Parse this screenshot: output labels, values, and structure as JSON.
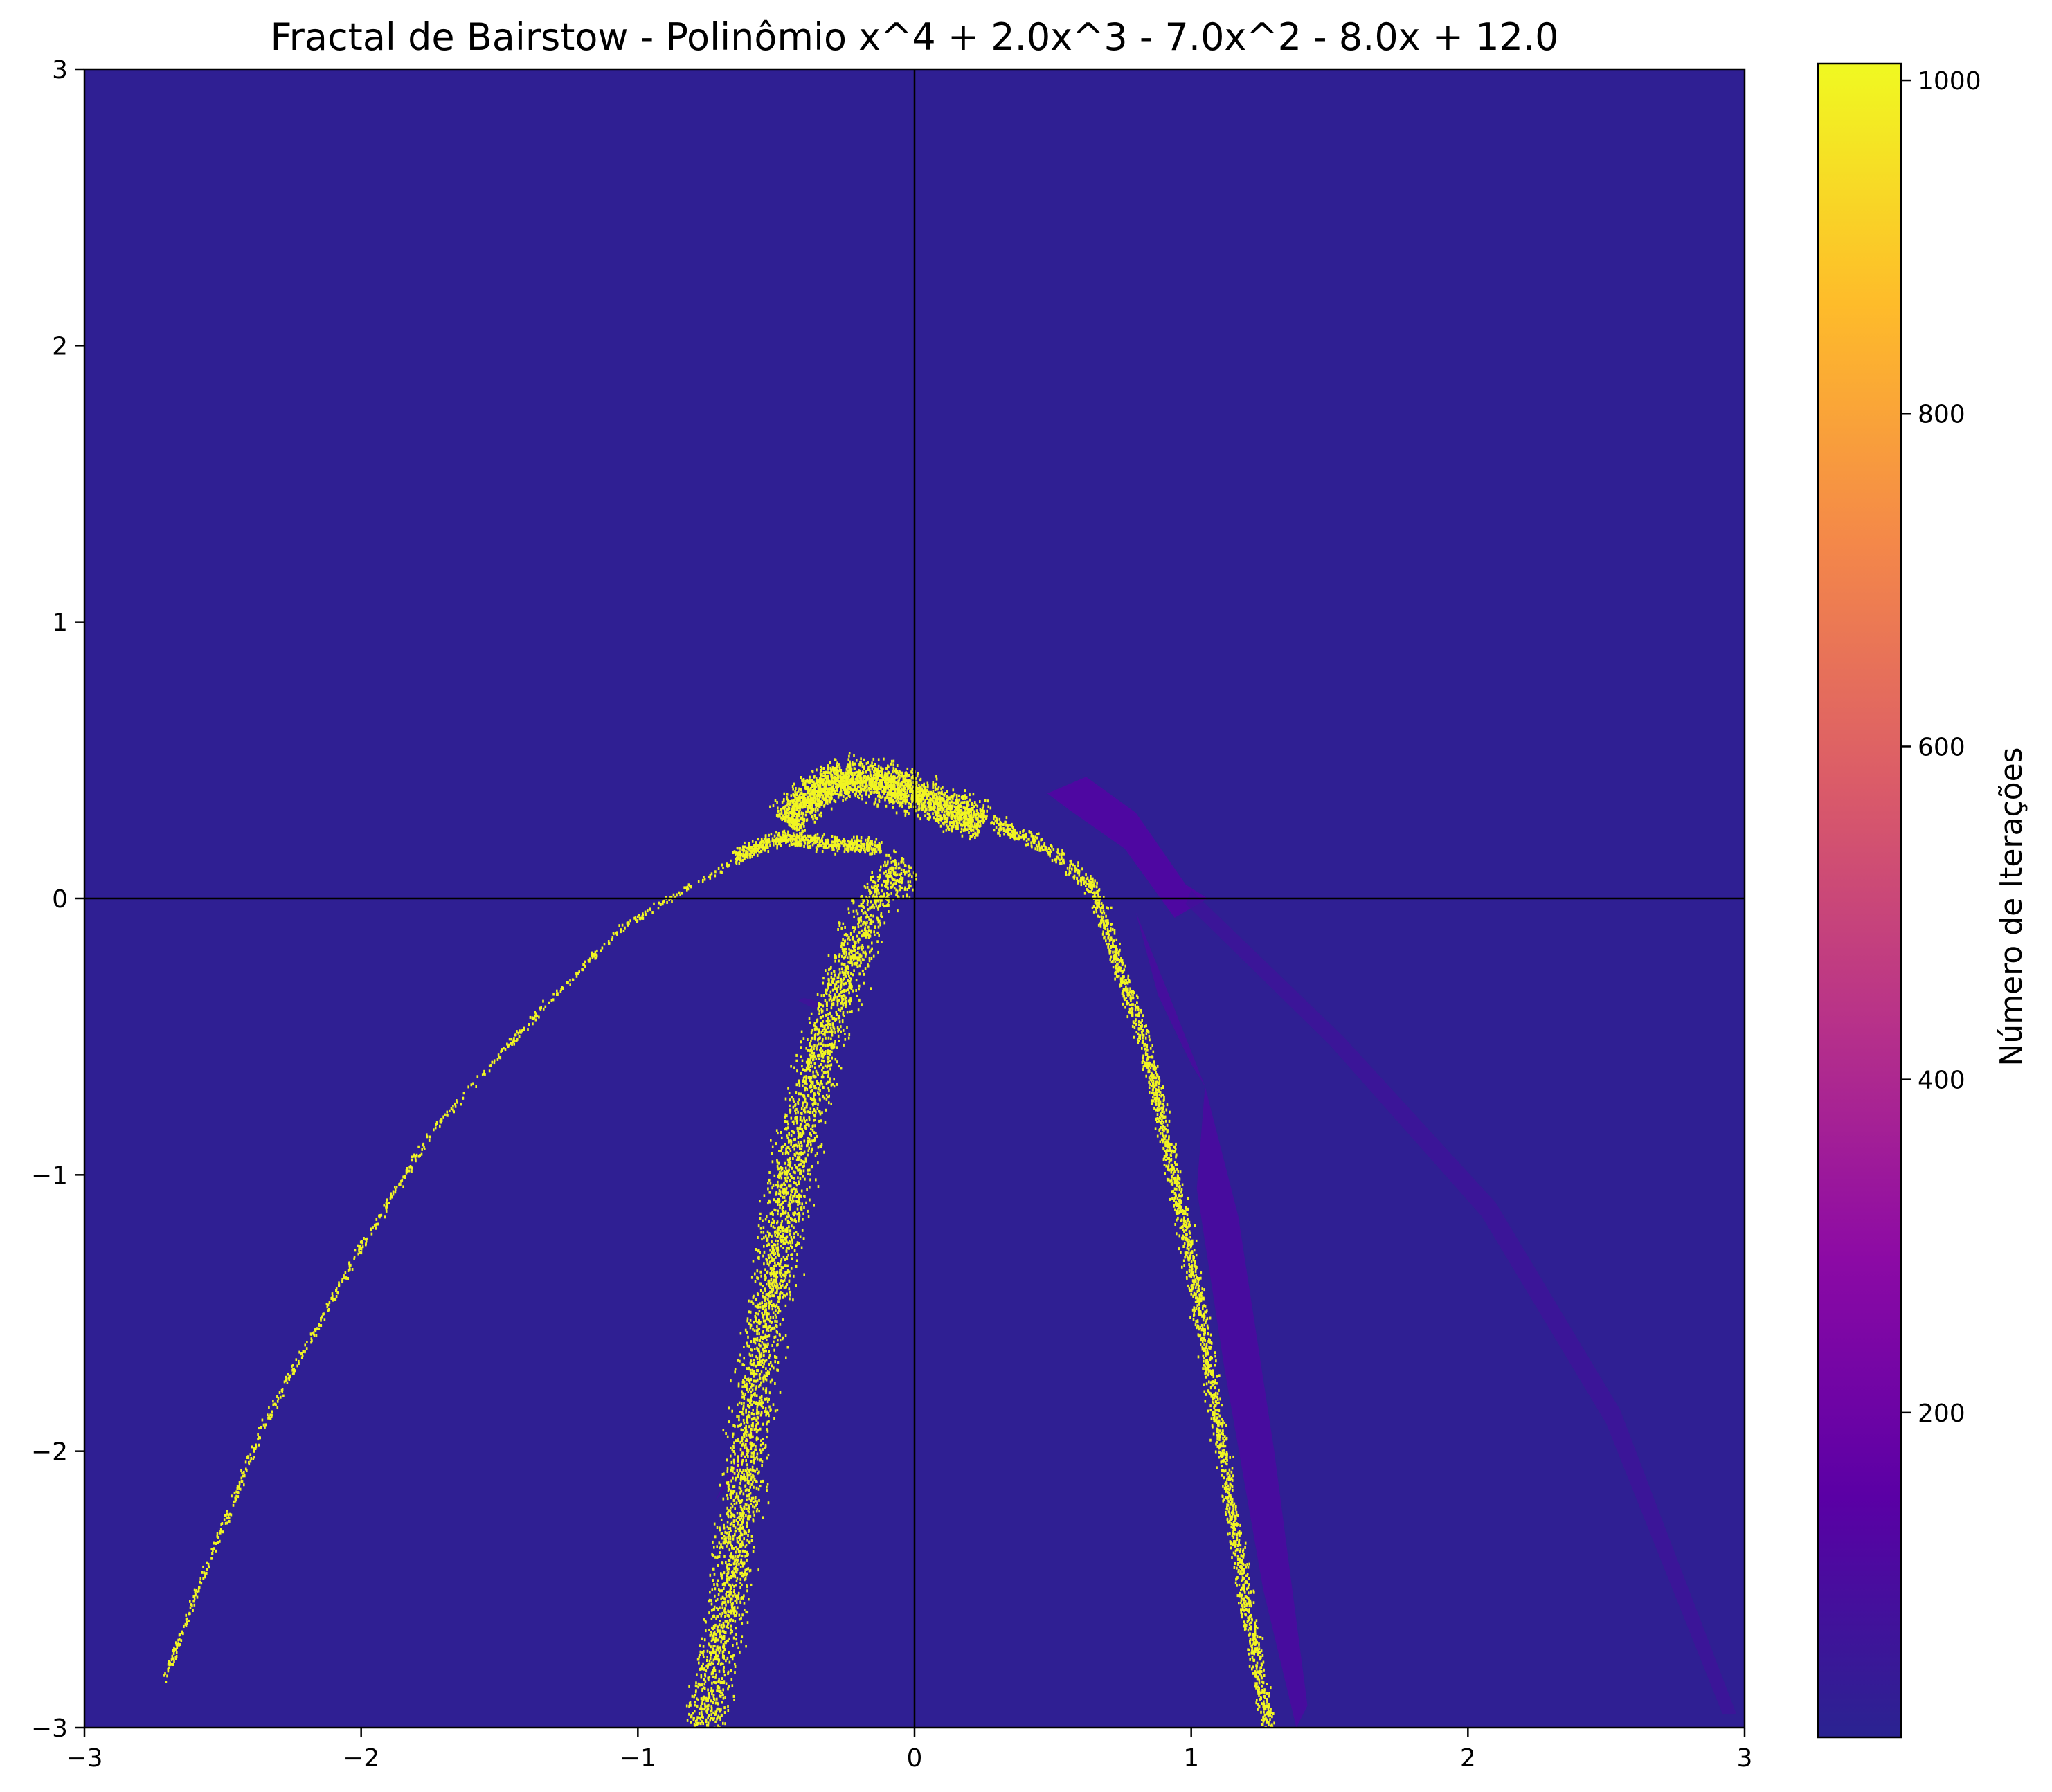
{
  "chart_data": {
    "type": "heatmap",
    "title": "Fractal de Bairstow - Polinômio x^4 + 2.0x^3 - 7.0x^2 - 8.0x + 12.0",
    "xlabel": "",
    "ylabel": "",
    "xlim": [
      -3,
      3
    ],
    "ylim": [
      -3,
      3
    ],
    "x_ticks": [
      -3,
      -2,
      -1,
      0,
      1,
      2,
      3
    ],
    "y_ticks": [
      -3,
      -2,
      -1,
      0,
      1,
      2,
      3
    ],
    "x_tick_labels": [
      "−3",
      "−2",
      "−1",
      "0",
      "1",
      "2",
      "3"
    ],
    "y_tick_labels": [
      "−3",
      "−2",
      "−1",
      "0",
      "1",
      "2",
      "3"
    ],
    "grid": false,
    "reference_lines": [
      {
        "orientation": "horizontal",
        "value": 0
      },
      {
        "orientation": "vertical",
        "value": 0
      }
    ],
    "colormap": "plasma",
    "colorbar": {
      "label": "Número de Iterações",
      "range": [
        5,
        1010
      ],
      "ticks": [
        200,
        400,
        600,
        800,
        1000
      ],
      "tick_labels": [
        "200",
        "400",
        "600",
        "800",
        "1000"
      ],
      "stops": [
        "#2a2391",
        "#5a00a5",
        "#8c0aa5",
        "#b83289",
        "#db5c68",
        "#f48849",
        "#febc2a",
        "#f0f921"
      ]
    },
    "background_value": 20,
    "regions": [
      {
        "name": "lens-right",
        "value": 150,
        "polygon": [
          [
            0.48,
            0.38
          ],
          [
            0.62,
            0.44
          ],
          [
            0.8,
            0.31
          ],
          [
            0.98,
            0.05
          ],
          [
            1.06,
            0.0
          ],
          [
            0.94,
            -0.07
          ],
          [
            0.76,
            0.18
          ],
          [
            0.56,
            0.32
          ]
        ]
      },
      {
        "name": "blade-lower",
        "value": 120,
        "polygon": [
          [
            1.05,
            -0.68
          ],
          [
            1.17,
            -1.15
          ],
          [
            1.3,
            -2.0
          ],
          [
            1.42,
            -2.92
          ],
          [
            1.38,
            -3.0
          ],
          [
            1.26,
            -2.5
          ],
          [
            1.12,
            -1.7
          ],
          [
            1.02,
            -1.05
          ]
        ]
      },
      {
        "name": "inner-petal",
        "value": 110,
        "polygon": [
          [
            0.8,
            -0.05
          ],
          [
            0.92,
            -0.35
          ],
          [
            1.05,
            -0.68
          ],
          [
            1.0,
            -0.6
          ],
          [
            0.88,
            -0.35
          ]
        ]
      },
      {
        "name": "thin-arc",
        "value": 70,
        "polygon": [
          [
            1.0,
            0.03
          ],
          [
            1.55,
            -0.5
          ],
          [
            2.1,
            -1.1
          ],
          [
            2.55,
            -1.85
          ],
          [
            2.97,
            -2.95
          ],
          [
            2.92,
            -2.95
          ],
          [
            2.5,
            -1.9
          ],
          [
            2.05,
            -1.15
          ],
          [
            1.5,
            -0.53
          ],
          [
            0.98,
            -0.02
          ]
        ]
      },
      {
        "name": "left-streak",
        "value": 90,
        "polygon": [
          [
            -0.52,
            -1.8
          ],
          [
            -0.62,
            -2.05
          ],
          [
            -0.72,
            -2.18
          ],
          [
            -0.64,
            -2.02
          ]
        ]
      },
      {
        "name": "small-blob",
        "value": 80,
        "polygon": [
          [
            -0.42,
            -0.37
          ],
          [
            -0.36,
            -0.4
          ],
          [
            -0.32,
            -0.38
          ],
          [
            -0.4,
            -0.36
          ]
        ]
      }
    ],
    "scatter_bands": [
      {
        "name": "band-left-curve",
        "value": 1000,
        "count": 700,
        "width": 0.018,
        "path": [
          [
            -0.62,
            0.15
          ],
          [
            -0.85,
            0.02
          ],
          [
            -1.05,
            -0.1
          ],
          [
            -1.35,
            -0.4
          ],
          [
            -1.75,
            -0.85
          ],
          [
            -2.05,
            -1.35
          ],
          [
            -2.35,
            -1.9
          ],
          [
            -2.55,
            -2.4
          ],
          [
            -2.72,
            -2.85
          ]
        ]
      },
      {
        "name": "band-cap",
        "value": 1000,
        "count": 2400,
        "width": 0.1,
        "path": [
          [
            -0.46,
            0.27
          ],
          [
            -0.38,
            0.37
          ],
          [
            -0.25,
            0.44
          ],
          [
            -0.12,
            0.42
          ],
          [
            0.0,
            0.38
          ],
          [
            0.12,
            0.33
          ],
          [
            0.25,
            0.27
          ]
        ]
      },
      {
        "name": "band-cap-left",
        "value": 1000,
        "count": 600,
        "width": 0.04,
        "path": [
          [
            -0.65,
            0.15
          ],
          [
            -0.48,
            0.22
          ],
          [
            -0.3,
            0.2
          ],
          [
            -0.12,
            0.18
          ]
        ]
      },
      {
        "name": "band-stem",
        "value": 1000,
        "count": 3600,
        "width": 0.11,
        "path": [
          [
            -0.02,
            0.12
          ],
          [
            -0.15,
            0.0
          ],
          [
            -0.28,
            -0.35
          ],
          [
            -0.38,
            -0.7
          ],
          [
            -0.46,
            -1.1
          ],
          [
            -0.54,
            -1.55
          ],
          [
            -0.61,
            -2.05
          ],
          [
            -0.67,
            -2.55
          ],
          [
            -0.76,
            -3.0
          ]
        ]
      },
      {
        "name": "band-right-curve",
        "value": 1000,
        "count": 2200,
        "width": 0.04,
        "path": [
          [
            0.28,
            0.28
          ],
          [
            0.5,
            0.17
          ],
          [
            0.65,
            0.03
          ],
          [
            0.74,
            -0.25
          ],
          [
            0.84,
            -0.55
          ],
          [
            0.95,
            -1.05
          ],
          [
            1.05,
            -1.6
          ],
          [
            1.13,
            -2.1
          ],
          [
            1.2,
            -2.55
          ],
          [
            1.28,
            -3.0
          ]
        ]
      }
    ]
  }
}
